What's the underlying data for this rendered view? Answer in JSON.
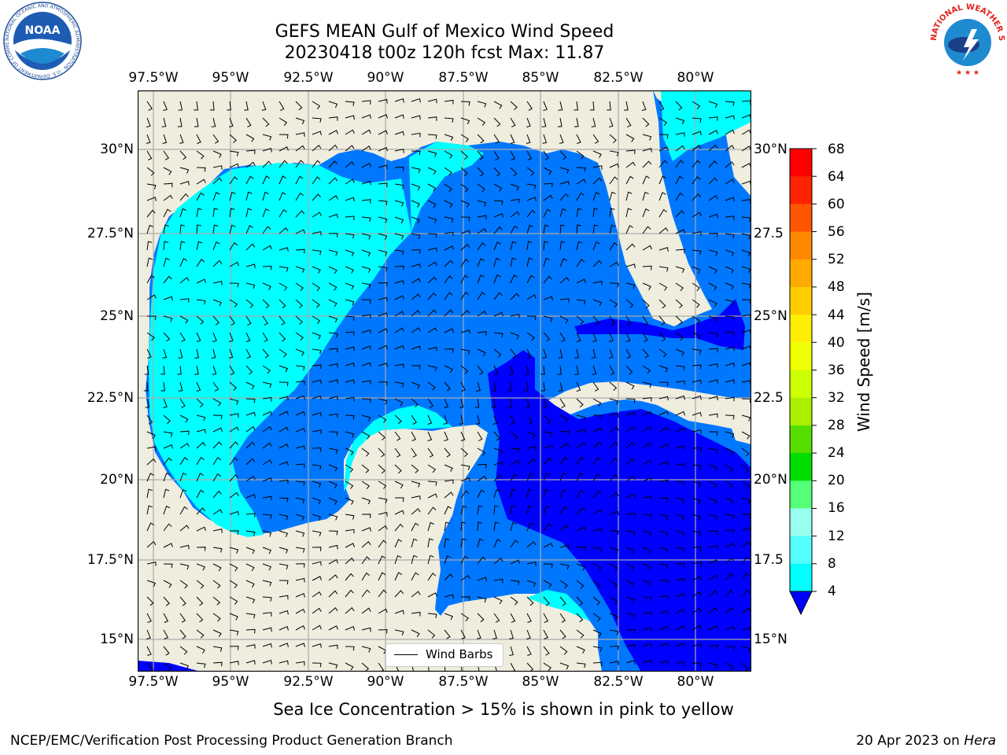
{
  "title_line1": "GEFS MEAN Gulf of Mexico Wind Speed",
  "title_line2": "20230418 t00z 120h fcst   Max: 11.87",
  "lon_labels": [
    "97.5°W",
    "95°W",
    "92.5°W",
    "90°W",
    "87.5°W",
    "85°W",
    "82.5°W",
    "80°W"
  ],
  "lat_labels": [
    "30°N",
    "27.5°N",
    "25°N",
    "22.5°N",
    "20°N",
    "17.5°N",
    "15°N"
  ],
  "lat_labels_right": [
    "30°N",
    "27.5",
    "25°N",
    "22.5",
    "20°N",
    "17.5",
    "15°N"
  ],
  "legend_label": "Wind Barbs",
  "colorbar": {
    "label": "Wind Speed [m/s]",
    "ticks": [
      "68",
      "64",
      "60",
      "56",
      "52",
      "48",
      "44",
      "40",
      "36",
      "32",
      "28",
      "24",
      "20",
      "16",
      "12",
      "8",
      "4"
    ],
    "colors": [
      "#ff0000",
      "#ff2200",
      "#ff5500",
      "#ff8800",
      "#ffaa00",
      "#ffcc00",
      "#ffee00",
      "#eeff00",
      "#ccff00",
      "#aaee00",
      "#55dd00",
      "#00dd00",
      "#55ff77",
      "#99ffee",
      "#55ffff",
      "#00ffff",
      "#0077ff",
      "#0000ff"
    ]
  },
  "map_colors": {
    "land": "#efedde",
    "speed_4_8": "#0077ff",
    "speed_8_12": "#00ffff",
    "speed_below_4": "#0000ff"
  },
  "sea_ice_note": "Sea Ice Concentration > 15% is shown in pink to yellow",
  "footer_left": "NCEP/EMC/Verification Post Processing Product Generation Branch",
  "footer_right_date": "20 Apr 2023 on ",
  "footer_right_machine": "Hera",
  "logos": {
    "noaa_text": "NOAA",
    "noaa_ring_text": "NATIONAL OCEANIC AND ATMOSPHERIC ADMINISTRATION · U.S. DEPARTMENT OF COMMERCE",
    "nws_ring_text": "NATIONAL WEATHER SERVICE"
  }
}
